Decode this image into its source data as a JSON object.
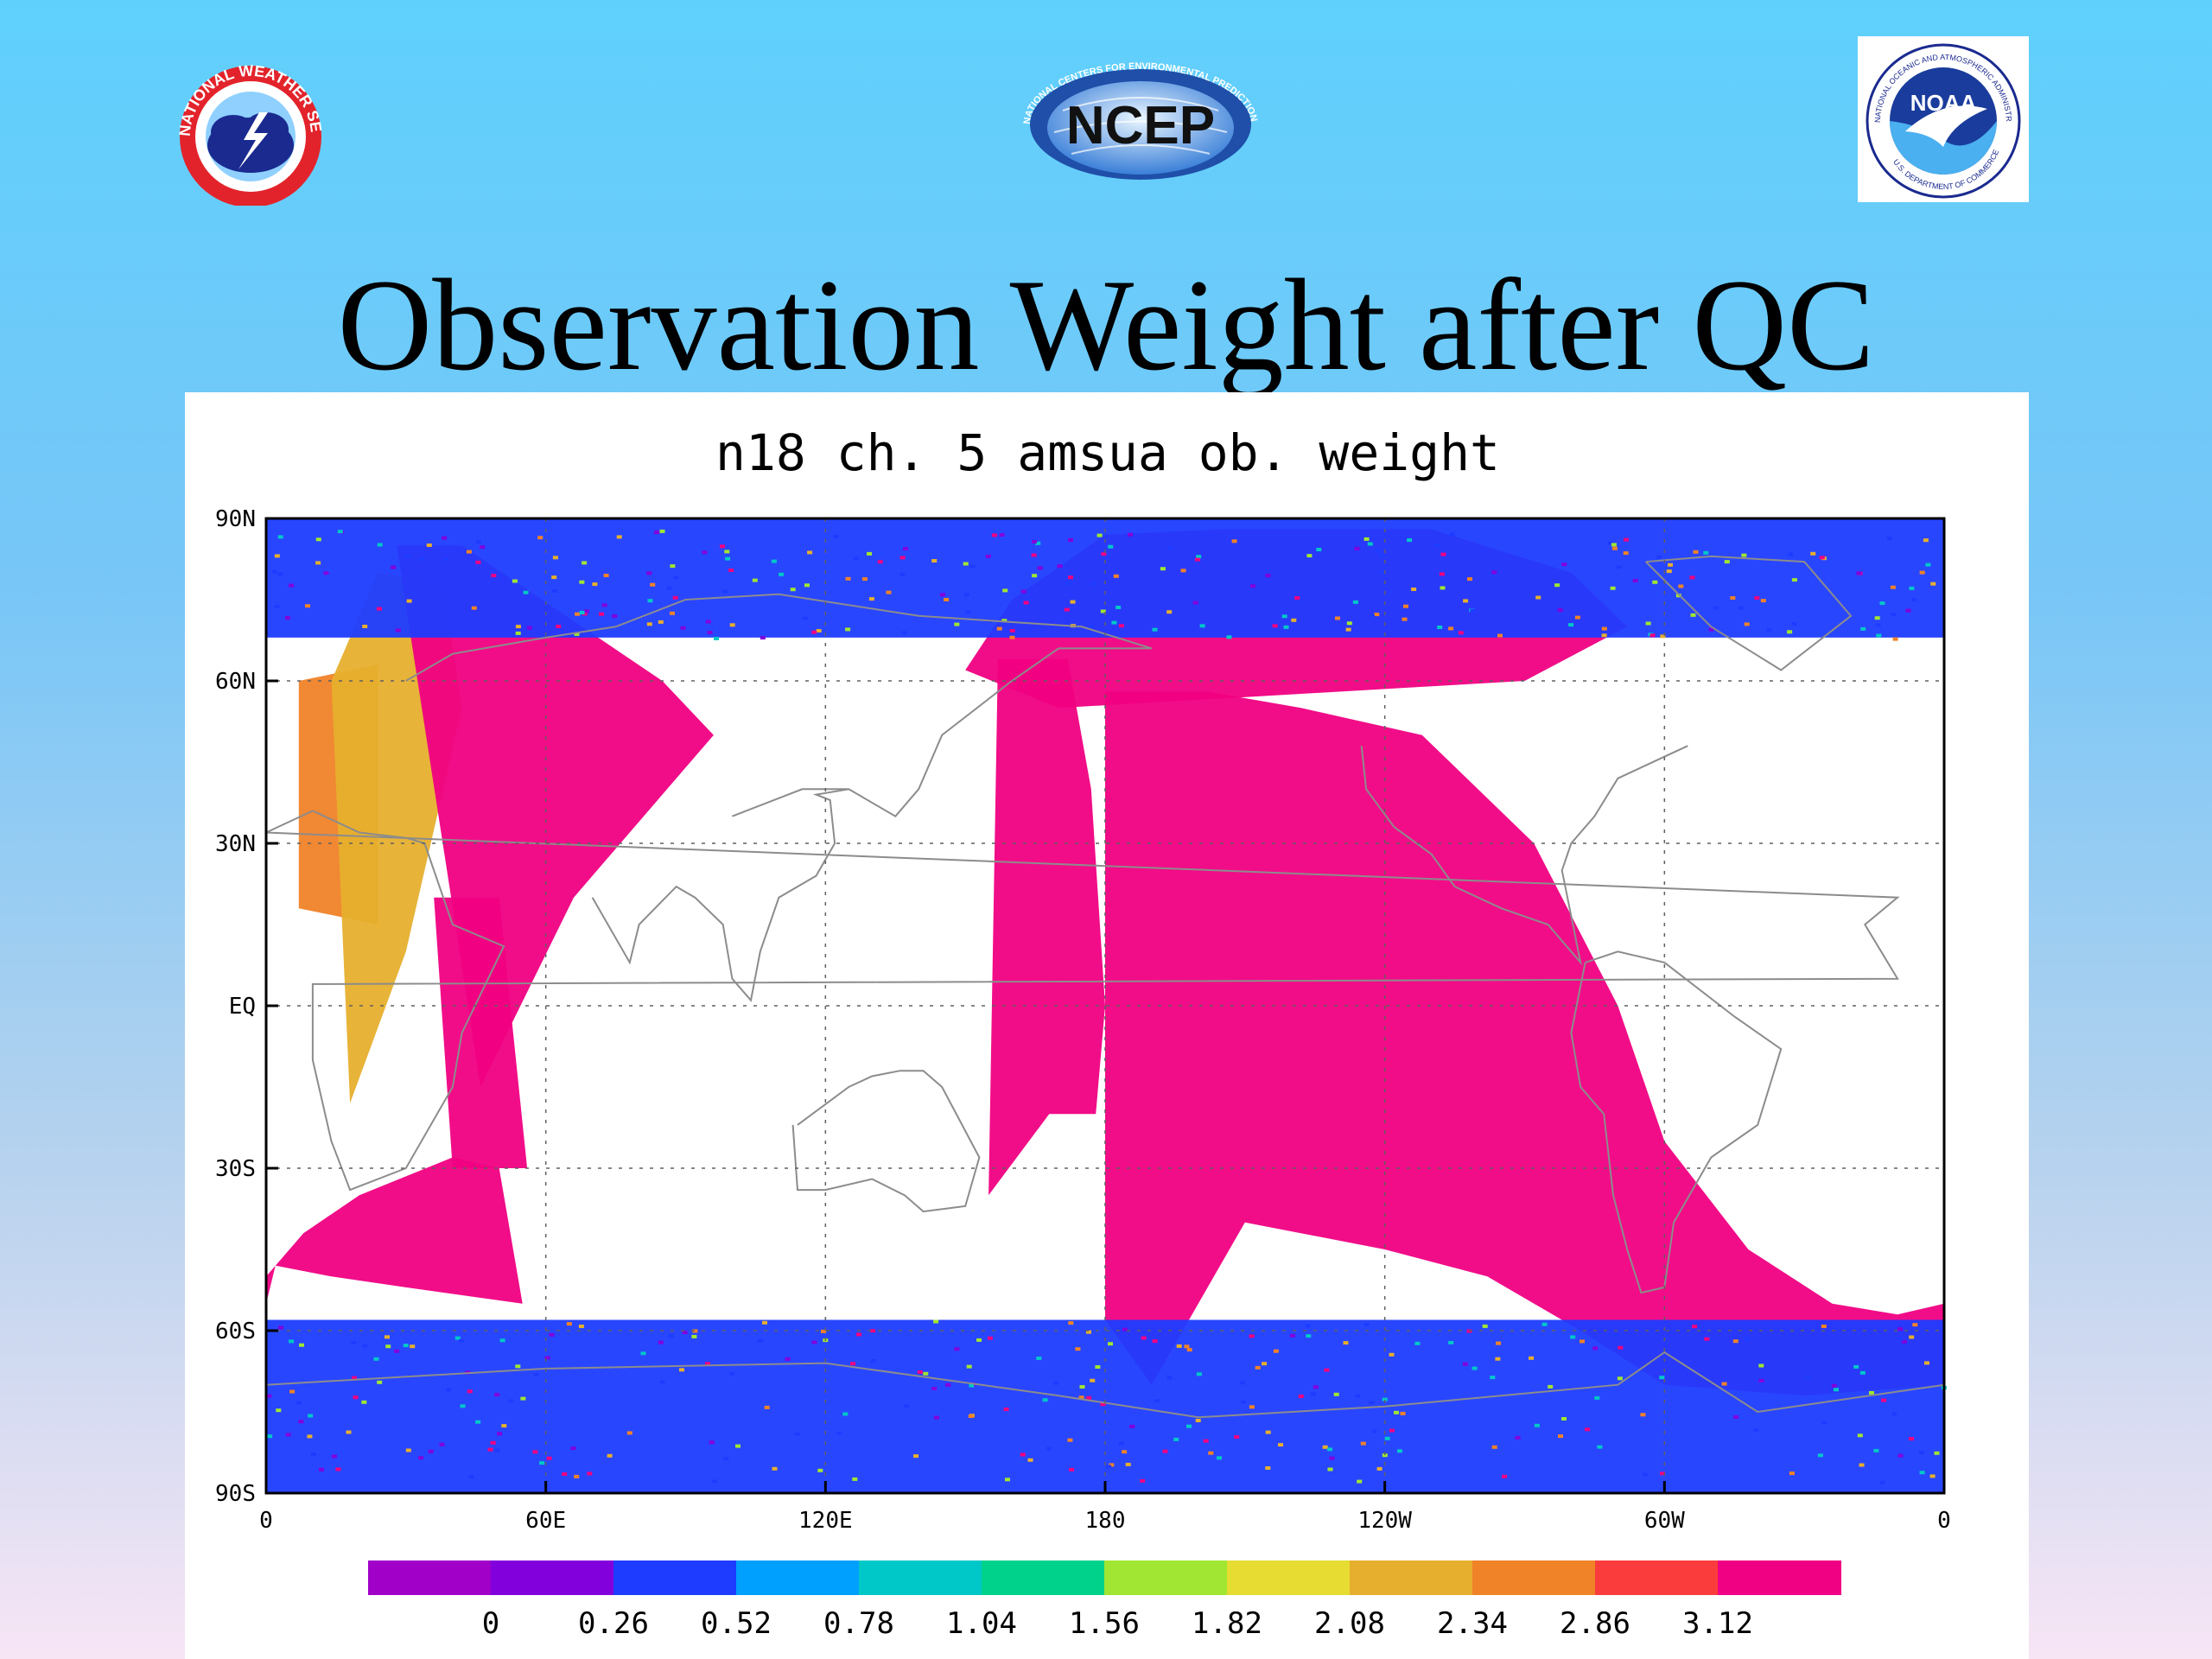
{
  "logos": {
    "nws": {
      "ring_text": "NATIONAL WEATHER SERVICE"
    },
    "ncep": {
      "label": "NCEP",
      "ring_text": "NATIONAL CENTERS FOR ENVIRONMENTAL PREDICTION"
    },
    "noaa": {
      "label": "NOAA",
      "ring_text": "NATIONAL OCEANIC AND ATMOSPHERIC ADMINISTRATION",
      "ring_text_2": "U.S. DEPARTMENT OF COMMERCE"
    }
  },
  "slide": {
    "title": "Observation Weight after QC"
  },
  "chart_data": {
    "type": "heatmap",
    "title": "n18 ch. 5 amsua ob. weight",
    "xlabel": "",
    "ylabel": "",
    "x_tick_labels": [
      "0",
      "60E",
      "120E",
      "180",
      "120W",
      "60W",
      "0"
    ],
    "y_tick_labels": [
      "90N",
      "60N",
      "30N",
      "EQ",
      "30S",
      "60S",
      "90S"
    ],
    "xlim": [
      0,
      360
    ],
    "ylim": [
      -90,
      90
    ],
    "grid": true,
    "colorbar": {
      "labels": [
        "0",
        "0.26",
        "0.52",
        "0.78",
        "1.04",
        "1.56",
        "1.82",
        "2.08",
        "2.34",
        "2.86",
        "3.12"
      ],
      "colors": [
        "#a000c8",
        "#8200dc",
        "#1e3cff",
        "#00a0ff",
        "#00c8c8",
        "#00d28c",
        "#a0e632",
        "#e6dc32",
        "#e6af2d",
        "#f08228",
        "#fa3c3c",
        "#f00082"
      ]
    },
    "dominant_color": "#f00082",
    "swaths": [
      {
        "lon": [
          7,
          24,
          24,
          7
        ],
        "lat": [
          60,
          63,
          15,
          18
        ],
        "value": 2.34
      },
      {
        "lon": [
          14,
          24,
          38,
          42,
          30,
          18
        ],
        "lat": [
          60,
          80,
          78,
          55,
          10,
          -18
        ],
        "value": 2.08
      },
      {
        "lon": [
          28,
          42,
          85,
          96,
          66,
          46
        ],
        "lat": [
          85,
          85,
          60,
          50,
          20,
          -15
        ],
        "value": 3.12
      },
      {
        "lon": [
          0,
          8,
          20,
          40,
          50,
          55,
          30,
          14,
          2,
          0
        ],
        "lat": [
          -50,
          -42,
          -35,
          -28,
          -30,
          -55,
          -52,
          -50,
          -48,
          -55
        ],
        "value": 3.12
      },
      {
        "lon": [
          36,
          50,
          56,
          40
        ],
        "lat": [
          20,
          20,
          -30,
          -30
        ],
        "value": 3.12
      },
      {
        "lon": [
          150,
          170,
          270,
          292,
          280,
          250,
          205,
          180,
          160,
          150
        ],
        "lat": [
          62,
          55,
          60,
          70,
          80,
          88,
          88,
          87,
          75,
          62
        ],
        "value": 3.12
      },
      {
        "lon": [
          157,
          172,
          177,
          180,
          178,
          168,
          155,
          157
        ],
        "lat": [
          64,
          64,
          40,
          0,
          -20,
          -20,
          -35,
          64
        ],
        "value": 3.12
      },
      {
        "lon": [
          180,
          202,
          222,
          248,
          272,
          290,
          300,
          318,
          336,
          350,
          360,
          360,
          330,
          300,
          282,
          262,
          240,
          210,
          190,
          180
        ],
        "lat": [
          58,
          58,
          55,
          50,
          30,
          0,
          -25,
          -45,
          -55,
          -57,
          -55,
          -70,
          -72,
          -70,
          -60,
          -50,
          -45,
          -40,
          -70,
          -58
        ],
        "value": 3.12
      },
      {
        "lon": [
          0,
          360,
          360,
          0
        ],
        "lat": [
          -58,
          -58,
          -90,
          -90
        ],
        "value": 0.26
      },
      {
        "lon": [
          0,
          360,
          360,
          0
        ],
        "lat": [
          90,
          90,
          68,
          68
        ],
        "value": 0.26
      }
    ]
  }
}
